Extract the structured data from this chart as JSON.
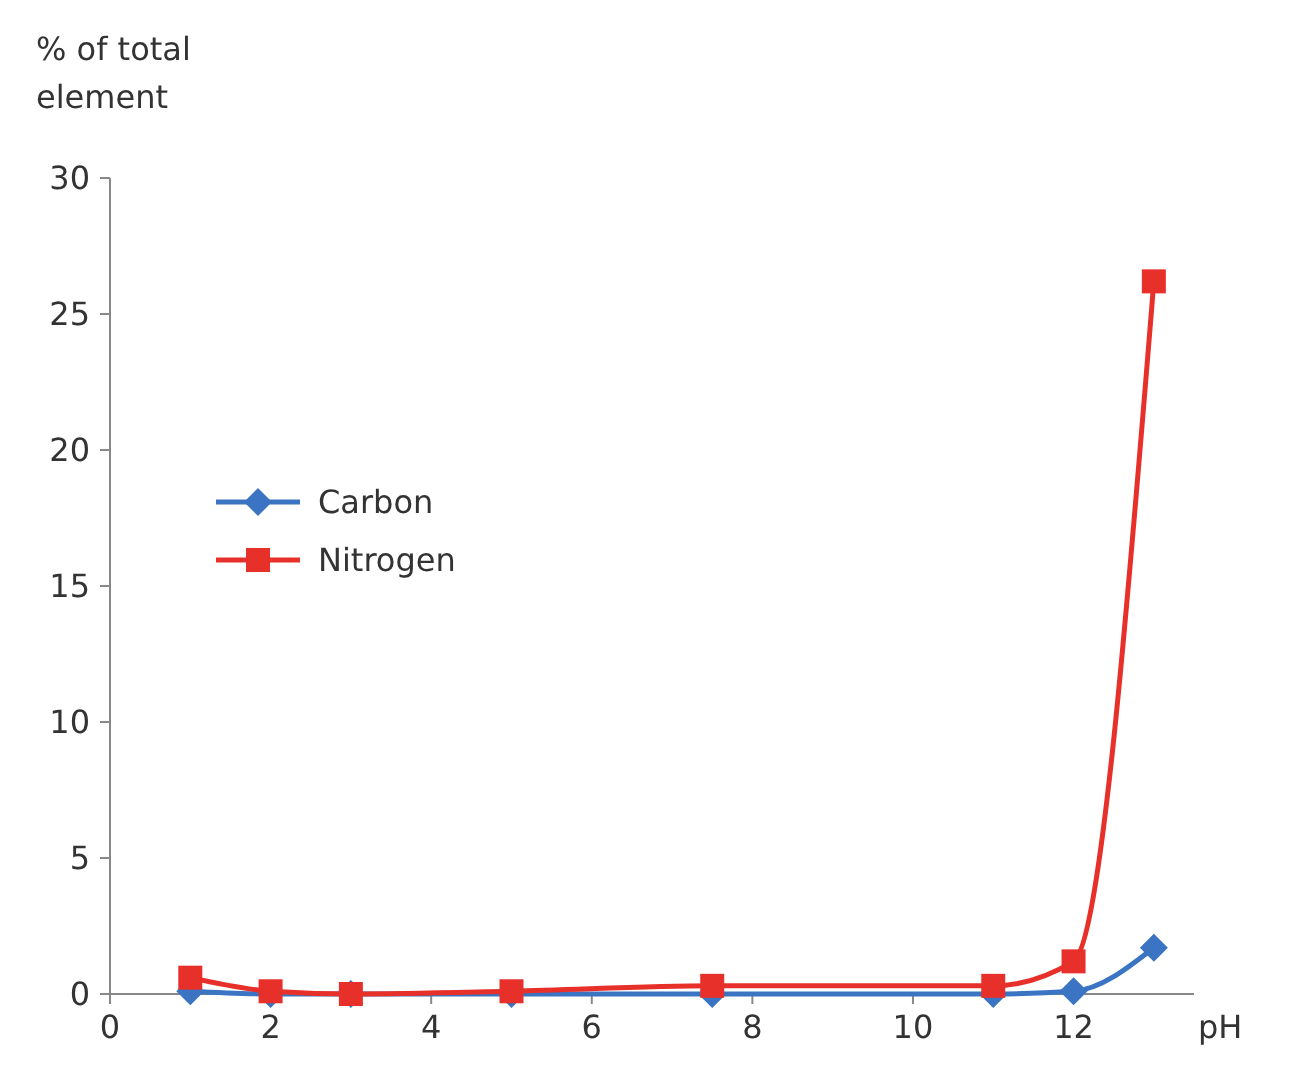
{
  "chart_data": {
    "type": "line",
    "ylabel": "% of total element",
    "xlabel": "pH",
    "xlim": [
      0,
      13.5
    ],
    "xticks": [
      0,
      2,
      4,
      6,
      8,
      10,
      12
    ],
    "ylim": [
      0,
      30
    ],
    "yticks": [
      0,
      5,
      10,
      15,
      20,
      25,
      30
    ],
    "legend": "left",
    "grid": false,
    "series": [
      {
        "name": "Carbon",
        "color": "#3a74c2",
        "marker": "diamond",
        "x": [
          1,
          2,
          3,
          5,
          7.5,
          11,
          12,
          13
        ],
        "values": [
          0.1,
          0,
          0,
          0,
          0,
          0,
          0.1,
          1.7
        ]
      },
      {
        "name": "Nitrogen",
        "color": "#e8302a",
        "marker": "square",
        "x": [
          1,
          2,
          3,
          5,
          7.5,
          11,
          12,
          13
        ],
        "values": [
          0.6,
          0.1,
          0,
          0.1,
          0.3,
          0.3,
          1.2,
          26.2
        ]
      }
    ]
  }
}
